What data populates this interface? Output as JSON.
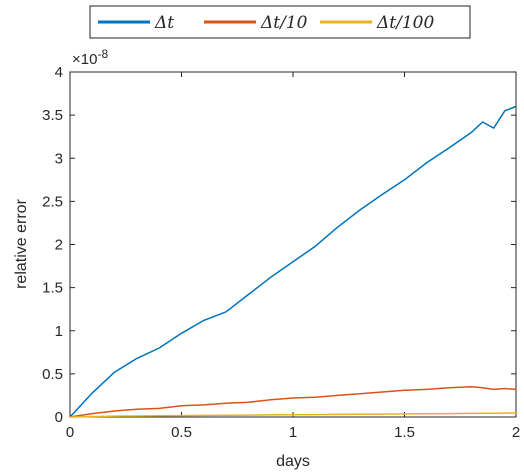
{
  "chart_data": {
    "type": "line",
    "xlabel": "days",
    "ylabel": "relative error",
    "y_exponent_label": "×10",
    "y_exponent_power": "-8",
    "xlim": [
      0,
      2
    ],
    "ylim": [
      0,
      4
    ],
    "x_ticks": [
      0,
      0.5,
      1,
      1.5,
      2
    ],
    "x_tick_labels": [
      "0",
      "0.5",
      "1",
      "1.5",
      "2"
    ],
    "y_ticks": [
      0,
      0.5,
      1,
      1.5,
      2,
      2.5,
      3,
      3.5,
      4
    ],
    "y_tick_labels": [
      "0",
      "0.5",
      "1",
      "1.5",
      "2",
      "2.5",
      "3",
      "3.5",
      "4"
    ],
    "grid": false,
    "legend_placement": "top-center",
    "x": [
      0,
      0.1,
      0.2,
      0.3,
      0.4,
      0.5,
      0.6,
      0.7,
      0.8,
      0.9,
      1.0,
      1.1,
      1.2,
      1.3,
      1.4,
      1.5,
      1.6,
      1.7,
      1.8,
      1.85,
      1.9,
      1.95,
      2.0
    ],
    "series": [
      {
        "name": "Δt",
        "color": "#0072BD",
        "values": [
          0,
          0.28,
          0.52,
          0.68,
          0.8,
          0.97,
          1.12,
          1.22,
          1.42,
          1.62,
          1.8,
          1.98,
          2.2,
          2.4,
          2.58,
          2.75,
          2.95,
          3.12,
          3.3,
          3.42,
          3.35,
          3.55,
          3.6
        ]
      },
      {
        "name": "Δt/10",
        "color": "#D95319",
        "values": [
          0,
          0.04,
          0.07,
          0.09,
          0.1,
          0.13,
          0.14,
          0.16,
          0.17,
          0.2,
          0.22,
          0.23,
          0.25,
          0.27,
          0.29,
          0.31,
          0.32,
          0.34,
          0.35,
          0.34,
          0.32,
          0.33,
          0.32
        ]
      },
      {
        "name": "Δt/100",
        "color": "#EDB120",
        "values": [
          0,
          0.005,
          0.01,
          0.012,
          0.014,
          0.016,
          0.018,
          0.02,
          0.022,
          0.024,
          0.026,
          0.028,
          0.03,
          0.032,
          0.034,
          0.036,
          0.038,
          0.04,
          0.042,
          0.043,
          0.044,
          0.045,
          0.046
        ]
      }
    ]
  }
}
